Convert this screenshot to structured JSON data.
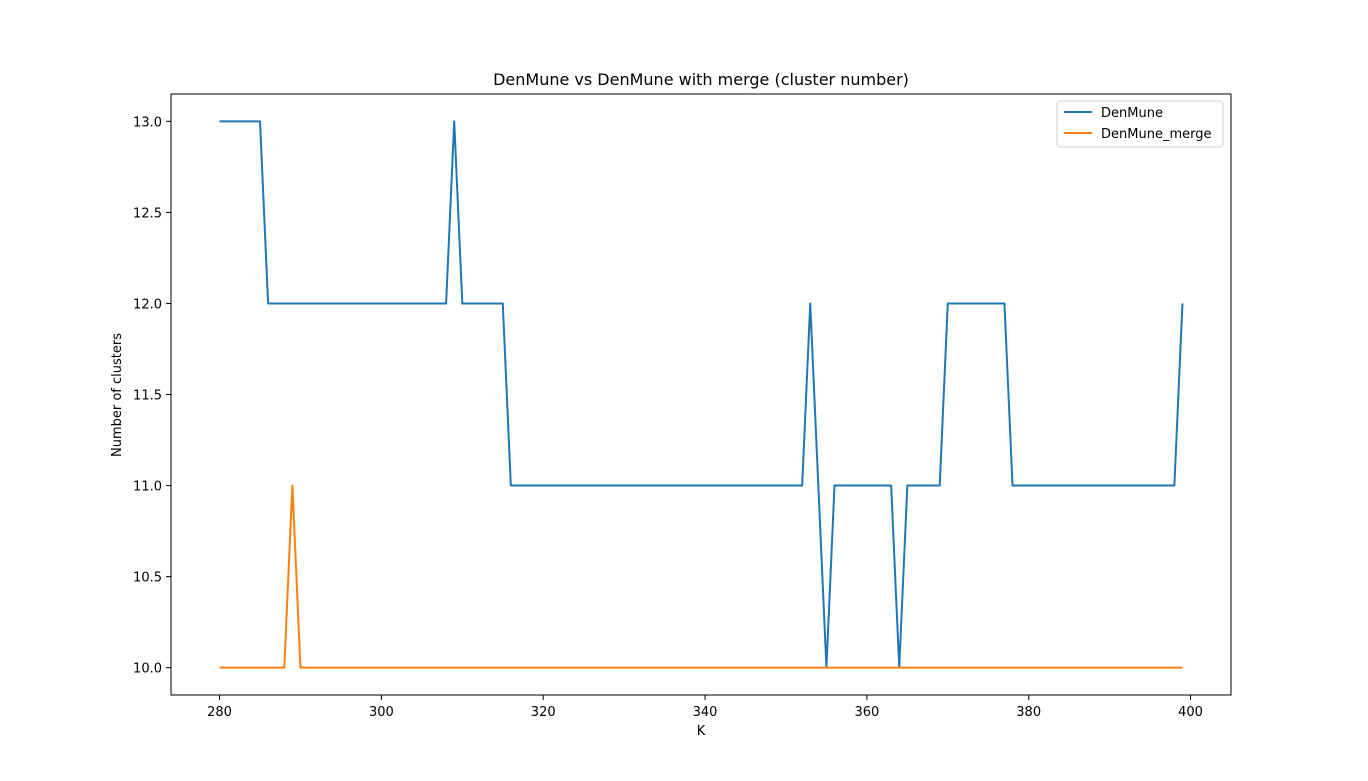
{
  "chart_data": {
    "type": "line",
    "title": "DenMune vs DenMune with merge (cluster number)",
    "xlabel": "K",
    "ylabel": "Number of clusters",
    "xlim": [
      274,
      405
    ],
    "ylim": [
      9.85,
      13.15
    ],
    "xticks": [
      280,
      300,
      320,
      340,
      360,
      380,
      400
    ],
    "yticks": [
      10.0,
      10.5,
      11.0,
      11.5,
      12.0,
      12.5,
      13.0
    ],
    "xtick_labels": [
      "280",
      "300",
      "320",
      "340",
      "360",
      "380",
      "400"
    ],
    "ytick_labels": [
      "10.0",
      "10.5",
      "11.0",
      "11.5",
      "12.0",
      "12.5",
      "13.0"
    ],
    "grid": false,
    "legend_position": "top-right",
    "x": [
      280,
      281,
      282,
      283,
      284,
      285,
      286,
      287,
      288,
      289,
      290,
      291,
      292,
      293,
      294,
      295,
      296,
      297,
      298,
      299,
      300,
      301,
      302,
      303,
      304,
      305,
      306,
      307,
      308,
      309,
      310,
      311,
      312,
      313,
      314,
      315,
      316,
      317,
      318,
      319,
      320,
      321,
      322,
      323,
      324,
      325,
      326,
      327,
      328,
      329,
      330,
      331,
      332,
      333,
      334,
      335,
      336,
      337,
      338,
      339,
      340,
      341,
      342,
      343,
      344,
      345,
      346,
      347,
      348,
      349,
      350,
      351,
      352,
      353,
      354,
      355,
      356,
      357,
      358,
      359,
      360,
      361,
      362,
      363,
      364,
      365,
      366,
      367,
      368,
      369,
      370,
      371,
      372,
      373,
      374,
      375,
      376,
      377,
      378,
      379,
      380,
      381,
      382,
      383,
      384,
      385,
      386,
      387,
      388,
      389,
      390,
      391,
      392,
      393,
      394,
      395,
      396,
      397,
      398,
      399
    ],
    "series": [
      {
        "name": "DenMune",
        "color": "#1f77b4",
        "values": [
          13,
          13,
          13,
          13,
          13,
          13,
          12,
          12,
          12,
          12,
          12,
          12,
          12,
          12,
          12,
          12,
          12,
          12,
          12,
          12,
          12,
          12,
          12,
          12,
          12,
          12,
          12,
          12,
          12,
          13,
          12,
          12,
          12,
          12,
          12,
          12,
          11,
          11,
          11,
          11,
          11,
          11,
          11,
          11,
          11,
          11,
          11,
          11,
          11,
          11,
          11,
          11,
          11,
          11,
          11,
          11,
          11,
          11,
          11,
          11,
          11,
          11,
          11,
          11,
          11,
          11,
          11,
          11,
          11,
          11,
          11,
          11,
          11,
          12,
          11,
          10,
          11,
          11,
          11,
          11,
          11,
          11,
          11,
          11,
          10,
          11,
          11,
          11,
          11,
          11,
          12,
          12,
          12,
          12,
          12,
          12,
          12,
          12,
          11,
          11,
          11,
          11,
          11,
          11,
          11,
          11,
          11,
          11,
          11,
          11,
          11,
          11,
          11,
          11,
          11,
          11,
          11,
          11,
          11,
          12
        ]
      },
      {
        "name": "DenMune_merge",
        "color": "#ff7f0e",
        "values": [
          10,
          10,
          10,
          10,
          10,
          10,
          10,
          10,
          10,
          11,
          10,
          10,
          10,
          10,
          10,
          10,
          10,
          10,
          10,
          10,
          10,
          10,
          10,
          10,
          10,
          10,
          10,
          10,
          10,
          10,
          10,
          10,
          10,
          10,
          10,
          10,
          10,
          10,
          10,
          10,
          10,
          10,
          10,
          10,
          10,
          10,
          10,
          10,
          10,
          10,
          10,
          10,
          10,
          10,
          10,
          10,
          10,
          10,
          10,
          10,
          10,
          10,
          10,
          10,
          10,
          10,
          10,
          10,
          10,
          10,
          10,
          10,
          10,
          10,
          10,
          10,
          10,
          10,
          10,
          10,
          10,
          10,
          10,
          10,
          10,
          10,
          10,
          10,
          10,
          10,
          10,
          10,
          10,
          10,
          10,
          10,
          10,
          10,
          10,
          10,
          10,
          10,
          10,
          10,
          10,
          10,
          10,
          10,
          10,
          10,
          10,
          10,
          10,
          10,
          10,
          10,
          10,
          10,
          10,
          10
        ]
      }
    ]
  }
}
